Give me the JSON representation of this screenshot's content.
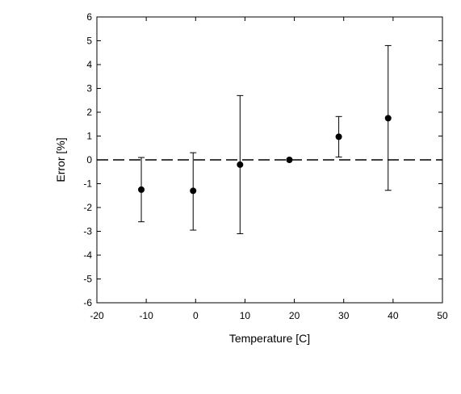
{
  "chart_data": {
    "type": "scatter",
    "title": "",
    "xlabel": "Temperature [C]",
    "ylabel": "Error [%]",
    "xlim": [
      -20,
      50
    ],
    "ylim": [
      -6,
      6
    ],
    "x_ticks": [
      -20,
      -10,
      0,
      10,
      20,
      30,
      40,
      50
    ],
    "y_ticks": [
      -6,
      -5,
      -4,
      -3,
      -2,
      -1,
      0,
      1,
      2,
      3,
      4,
      5,
      6
    ],
    "grid": false,
    "legend": "none",
    "reference_line": {
      "y": 0,
      "style": "dashed"
    },
    "points": [
      {
        "x": -11,
        "y": -1.25,
        "err_low": -2.6,
        "err_high": 0.1
      },
      {
        "x": -0.5,
        "y": -1.3,
        "err_low": -2.95,
        "err_high": 0.3
      },
      {
        "x": 9,
        "y": -0.2,
        "err_low": -3.1,
        "err_high": 2.7
      },
      {
        "x": 19,
        "y": 0.0,
        "err_low": 0.0,
        "err_high": 0.0
      },
      {
        "x": 29,
        "y": 0.97,
        "err_low": 0.12,
        "err_high": 1.82
      },
      {
        "x": 39,
        "y": 1.75,
        "err_low": -1.28,
        "err_high": 4.8
      }
    ],
    "colors": {
      "marker": "#000000",
      "axis": "#000000",
      "errorbar": "#000000"
    }
  }
}
